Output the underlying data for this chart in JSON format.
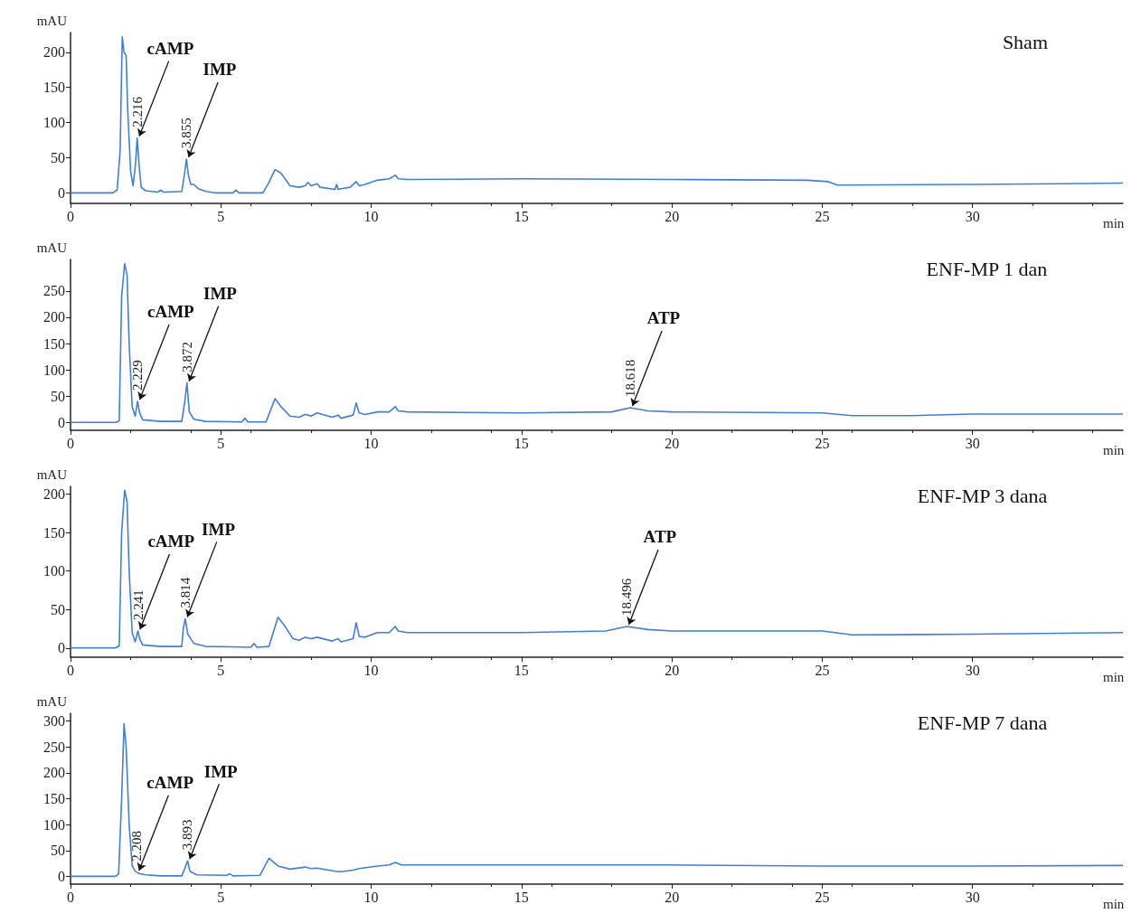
{
  "chart_data": [
    {
      "type": "line",
      "title": "Sham",
      "xlabel": "min",
      "ylabel": "mAU",
      "color": "#3f7fd6",
      "marker": "none",
      "xlim": [
        0,
        35
      ],
      "xticks": [
        0,
        5,
        10,
        15,
        20,
        25,
        30
      ],
      "ylim": [
        -15,
        228
      ],
      "yticks": [
        0,
        50,
        100,
        150,
        200
      ],
      "x": [
        0,
        1.4,
        1.55,
        1.65,
        1.72,
        1.78,
        1.85,
        1.9,
        2.0,
        2.08,
        2.16,
        2.216,
        2.28,
        2.35,
        2.5,
        2.9,
        3.0,
        3.1,
        3.7,
        3.8,
        3.855,
        3.92,
        4.0,
        4.1,
        4.25,
        4.5,
        4.8,
        5.4,
        5.5,
        5.6,
        6.4,
        6.6,
        6.8,
        7.0,
        7.3,
        7.6,
        7.8,
        7.9,
        8.0,
        8.2,
        8.3,
        8.8,
        8.85,
        8.9,
        9.0,
        9.3,
        9.5,
        9.6,
        9.8,
        10.2,
        10.6,
        10.8,
        10.9,
        11.2,
        15,
        20,
        24.5,
        25.2,
        25.5,
        30,
        33,
        35
      ],
      "values": [
        0,
        0,
        4,
        60,
        222,
        200,
        195,
        120,
        30,
        10,
        40,
        78,
        40,
        8,
        3,
        1,
        4,
        1,
        2,
        30,
        48,
        25,
        12,
        12,
        6,
        2,
        0,
        0,
        4,
        0,
        0,
        15,
        33,
        28,
        10,
        8,
        10,
        15,
        10,
        13,
        8,
        5,
        12,
        5,
        6,
        8,
        16,
        10,
        12,
        18,
        20,
        25,
        20,
        19,
        20,
        19,
        18,
        16,
        11,
        12,
        13,
        14
      ],
      "annotations": [
        {
          "text": "cAMP",
          "x": 2.216,
          "y": 78
        },
        {
          "text": "2.216",
          "x": 2.216,
          "y": 78
        },
        {
          "text": "IMP",
          "x": 3.855,
          "y": 48
        },
        {
          "text": "3.855",
          "x": 3.855,
          "y": 48
        }
      ]
    },
    {
      "type": "line",
      "title": "ENF-MP 1 dan",
      "xlabel": "min",
      "ylabel": "mAU",
      "color": "#3f7fd6",
      "marker": "none",
      "xlim": [
        0,
        35
      ],
      "xticks": [
        0,
        5,
        10,
        15,
        20,
        25,
        30
      ],
      "ylim": [
        -15,
        310
      ],
      "yticks": [
        0,
        50,
        100,
        150,
        200,
        250
      ],
      "x": [
        0,
        1.5,
        1.62,
        1.7,
        1.8,
        1.88,
        1.95,
        2.05,
        2.15,
        2.229,
        2.3,
        2.4,
        3.0,
        3.7,
        3.8,
        3.872,
        3.95,
        4.1,
        4.5,
        5.7,
        5.8,
        5.9,
        6.5,
        6.8,
        7.0,
        7.3,
        7.6,
        7.8,
        7.9,
        8.0,
        8.2,
        8.7,
        8.9,
        9.0,
        9.4,
        9.5,
        9.6,
        9.8,
        10.2,
        10.6,
        10.8,
        10.9,
        11.2,
        15,
        18.0,
        18.618,
        19.2,
        20,
        25,
        26,
        28,
        30,
        35
      ],
      "values": [
        0,
        0,
        3,
        240,
        302,
        280,
        150,
        30,
        12,
        40,
        18,
        5,
        2,
        2,
        40,
        75,
        20,
        6,
        2,
        1,
        8,
        1,
        1,
        45,
        30,
        12,
        10,
        15,
        14,
        12,
        18,
        10,
        14,
        8,
        14,
        37,
        18,
        15,
        20,
        20,
        30,
        22,
        20,
        18,
        20,
        28,
        22,
        20,
        18,
        13,
        13,
        16,
        16
      ],
      "annotations": [
        {
          "text": "cAMP",
          "x": 2.229,
          "y": 40
        },
        {
          "text": "2.229",
          "x": 2.229,
          "y": 40
        },
        {
          "text": "IMP",
          "x": 3.872,
          "y": 75
        },
        {
          "text": "3.872",
          "x": 3.872,
          "y": 75
        },
        {
          "text": "ATP",
          "x": 18.618,
          "y": 28
        },
        {
          "text": "18.618",
          "x": 18.618,
          "y": 28
        }
      ]
    },
    {
      "type": "line",
      "title": "ENF-MP 3 dana",
      "xlabel": "min",
      "ylabel": "mAU",
      "color": "#3f7fd6",
      "marker": "none",
      "xlim": [
        0,
        35
      ],
      "xticks": [
        0,
        5,
        10,
        15,
        20,
        25,
        30
      ],
      "ylim": [
        -12,
        210
      ],
      "yticks": [
        0,
        50,
        100,
        150,
        200
      ],
      "x": [
        0,
        1.5,
        1.62,
        1.7,
        1.8,
        1.88,
        1.95,
        2.05,
        2.15,
        2.241,
        2.3,
        2.4,
        3.0,
        3.7,
        3.75,
        3.814,
        3.9,
        4.1,
        4.5,
        6.0,
        6.1,
        6.2,
        6.6,
        6.9,
        7.1,
        7.4,
        7.6,
        7.8,
        7.9,
        8.0,
        8.2,
        8.7,
        8.9,
        9.0,
        9.4,
        9.5,
        9.6,
        9.8,
        10.2,
        10.6,
        10.8,
        10.9,
        11.2,
        15,
        17.8,
        18.496,
        19.2,
        20,
        25,
        26,
        30,
        35
      ],
      "values": [
        0,
        0,
        3,
        150,
        205,
        190,
        100,
        20,
        8,
        22,
        12,
        4,
        2,
        2,
        25,
        38,
        18,
        6,
        2,
        1,
        6,
        1,
        2,
        40,
        30,
        12,
        10,
        14,
        13,
        12,
        14,
        9,
        12,
        8,
        12,
        33,
        15,
        14,
        20,
        20,
        28,
        22,
        20,
        20,
        22,
        28,
        24,
        22,
        22,
        17,
        18,
        20
      ],
      "annotations": [
        {
          "text": "cAMP",
          "x": 2.241,
          "y": 22
        },
        {
          "text": "2.241",
          "x": 2.241,
          "y": 22
        },
        {
          "text": "IMP",
          "x": 3.814,
          "y": 38
        },
        {
          "text": "3.814",
          "x": 3.814,
          "y": 38
        },
        {
          "text": "ATP",
          "x": 18.496,
          "y": 28
        },
        {
          "text": "18.496",
          "x": 18.496,
          "y": 28
        }
      ]
    },
    {
      "type": "line",
      "title": "ENF-MP 7 dana",
      "xlabel": "min",
      "ylabel": "mAU",
      "color": "#3f7fd6",
      "marker": "none",
      "xlim": [
        0,
        35
      ],
      "xticks": [
        0,
        5,
        10,
        15,
        20,
        25,
        30
      ],
      "ylim": [
        -15,
        315
      ],
      "yticks": [
        0,
        50,
        100,
        150,
        200,
        250,
        300
      ],
      "x": [
        0,
        1.5,
        1.6,
        1.7,
        1.78,
        1.85,
        1.95,
        2.05,
        2.15,
        2.208,
        2.3,
        2.5,
        3.0,
        3.7,
        3.8,
        3.893,
        3.97,
        4.2,
        5.2,
        5.3,
        5.4,
        6.3,
        6.6,
        6.9,
        7.3,
        7.8,
        8.0,
        8.2,
        8.8,
        9.0,
        9.4,
        9.6,
        10.2,
        10.6,
        10.8,
        11.0,
        15,
        20,
        25,
        30,
        35
      ],
      "values": [
        0,
        0,
        5,
        150,
        295,
        250,
        100,
        20,
        10,
        8,
        5,
        3,
        1,
        1,
        15,
        30,
        10,
        3,
        2,
        5,
        1,
        2,
        35,
        20,
        14,
        18,
        15,
        16,
        10,
        9,
        12,
        15,
        20,
        22,
        27,
        22,
        22,
        22,
        20,
        20,
        21
      ],
      "annotations": [
        {
          "text": "cAMP",
          "x": 2.208,
          "y": 8
        },
        {
          "text": "2.208",
          "x": 2.208,
          "y": 8
        },
        {
          "text": "IMP",
          "x": 3.893,
          "y": 30
        },
        {
          "text": "3.893",
          "x": 3.893,
          "y": 30
        }
      ]
    }
  ]
}
